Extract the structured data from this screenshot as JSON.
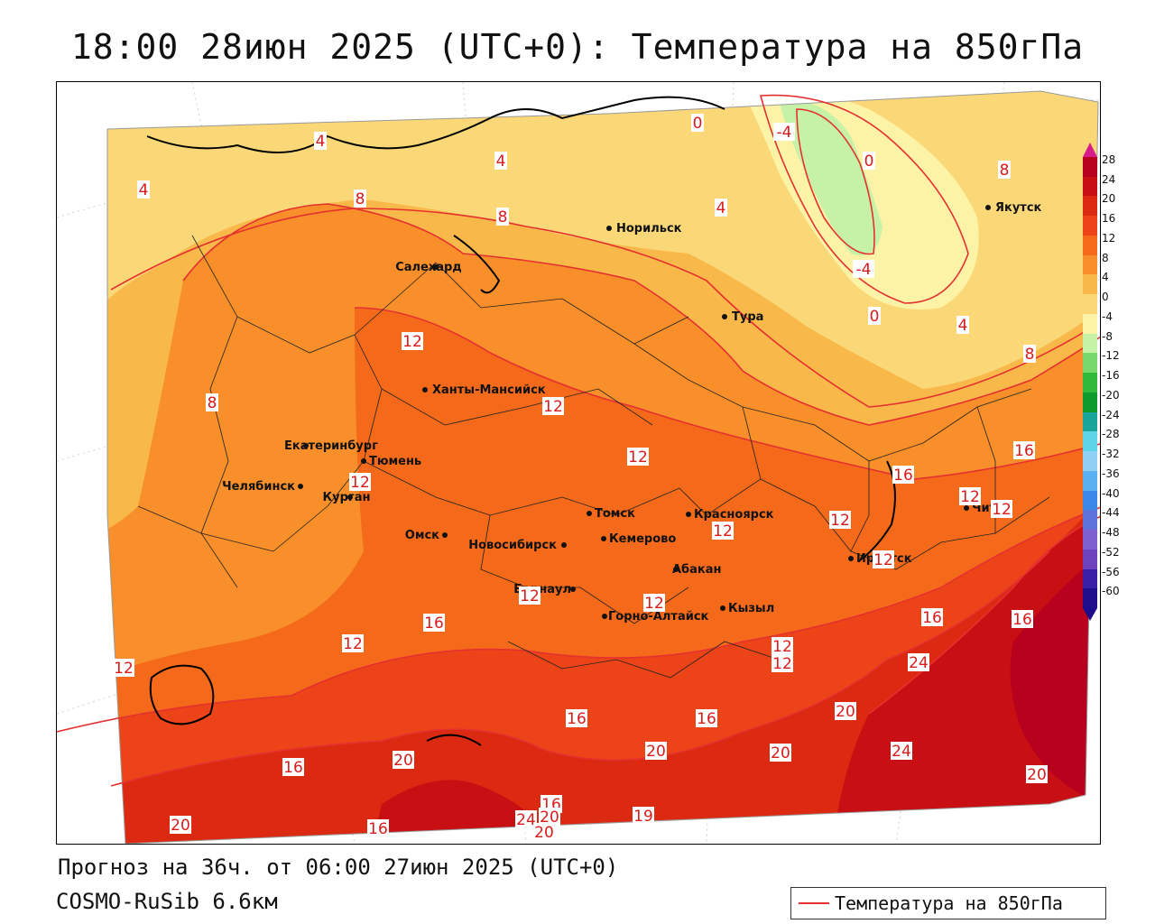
{
  "title": "18:00 28июн 2025 (UTC+0): Температура на 850гПа",
  "forecast_line": "Прогноз на 36ч. от 06:00 27июн 2025 (UTC+0)",
  "model_line": "COSMO-RuSib 6.6км",
  "legend": {
    "label": "Температура на 850гПа",
    "color": "#e53030"
  },
  "colorbar": {
    "ticks": [
      "28",
      "24",
      "20",
      "16",
      "12",
      "8",
      "4",
      "0",
      "-4",
      "-8",
      "-12",
      "-16",
      "-20",
      "-24",
      "-28",
      "-32",
      "-36",
      "-40",
      "-44",
      "-48",
      "-52",
      "-56",
      "-60"
    ],
    "colors": [
      "#b8001f",
      "#c80f14",
      "#dc2a12",
      "#ec4418",
      "#f56a1a",
      "#f88f2a",
      "#f9b84a",
      "#fbd877",
      "#fdf3a6",
      "#c6f2a8",
      "#78d86b",
      "#2fb83a",
      "#0f9a2e",
      "#1aa59b",
      "#5fd3e8",
      "#8fd0f4",
      "#5ab0f0",
      "#3b88e8",
      "#5e72dc",
      "#7f60d0",
      "#6c43bc",
      "#3a1fa6",
      "#1e0e8c"
    ]
  },
  "cities": [
    {
      "name": "Норильск"
    },
    {
      "name": "Якутск"
    },
    {
      "name": "Салехард"
    },
    {
      "name": "Тура"
    },
    {
      "name": "Ханты-Мансийск"
    },
    {
      "name": "Екатеринбург"
    },
    {
      "name": "Тюмень"
    },
    {
      "name": "Челябинск"
    },
    {
      "name": "Курган"
    },
    {
      "name": "Омск"
    },
    {
      "name": "Новосибирск"
    },
    {
      "name": "Томск"
    },
    {
      "name": "Кемерово"
    },
    {
      "name": "Красноярск"
    },
    {
      "name": "Барнаул"
    },
    {
      "name": "Абакан"
    },
    {
      "name": "Горно-Алтайск"
    },
    {
      "name": "Кызыл"
    },
    {
      "name": "Иркутск"
    },
    {
      "name": "Чита"
    }
  ],
  "contour_labels": [
    "4",
    "4",
    "4",
    "8",
    "8",
    "0",
    "-4",
    "0",
    "-4",
    "0",
    "4",
    "8",
    "8",
    "4",
    "8",
    "12",
    "12",
    "12",
    "12",
    "16",
    "12",
    "12",
    "12",
    "12",
    "12",
    "12",
    "12",
    "16",
    "12",
    "12",
    "16",
    "12",
    "12",
    "16",
    "16",
    "24",
    "20",
    "16",
    "16",
    "20",
    "20",
    "16",
    "24",
    "20",
    "20",
    "20",
    "16",
    "24",
    "16",
    "20",
    "19",
    "20"
  ]
}
